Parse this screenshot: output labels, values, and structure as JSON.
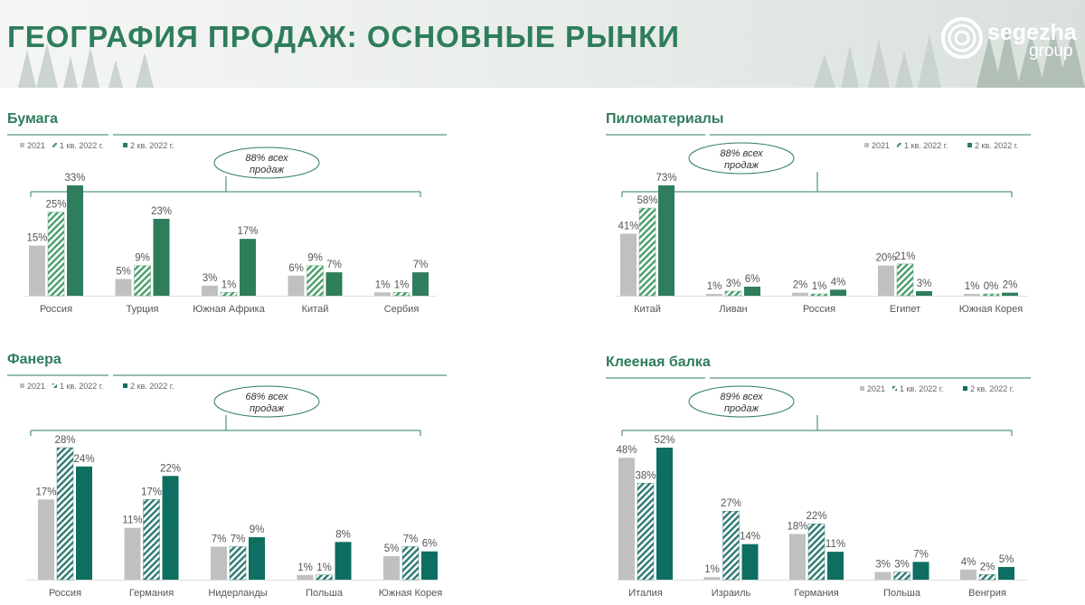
{
  "header": {
    "title": "ГЕОГРАФИЯ ПРОДАЖ: ОСНОВНЫЕ РЫНКИ",
    "logo_word1": "segezha",
    "logo_word2": "group"
  },
  "colors": {
    "s2021": "#c0c0c0",
    "q1_green": "#4a9e6b",
    "q2_green": "#2e7d5b",
    "q1_teal": "#2d7a72",
    "q2_teal": "#0e6e62",
    "accent": "#2e7d5b"
  },
  "chart_data": [
    {
      "type": "bar",
      "title": "Бумага",
      "callout": "88% всех продаж",
      "categories": [
        "Россия",
        "Турция",
        "Южная Африка",
        "Китай",
        "Сербия"
      ],
      "series": [
        {
          "name": "2021",
          "values": [
            15,
            5,
            3,
            6,
            1
          ],
          "labels": [
            "15%",
            "5%",
            "3%",
            "6%",
            "1%"
          ]
        },
        {
          "name": "1 кв. 2022 г.",
          "values": [
            25,
            9,
            1,
            9,
            1
          ],
          "labels": [
            "25%",
            "9%",
            "1%",
            "9%",
            "1%"
          ]
        },
        {
          "name": "2 кв. 2022 г.",
          "values": [
            33,
            23,
            17,
            7,
            7
          ],
          "labels": [
            "33%",
            "23%",
            "17%",
            "7%",
            "7%"
          ]
        }
      ]
    },
    {
      "type": "bar",
      "title": "Пиломатериалы",
      "callout": "88% всех продаж",
      "categories": [
        "Китай",
        "Ливан",
        "Россия",
        "Египет",
        "Южная Корея"
      ],
      "series": [
        {
          "name": "2021",
          "values": [
            41,
            1,
            2,
            20,
            1
          ],
          "labels": [
            "41%",
            "1%",
            "2%",
            "20%",
            "1%"
          ]
        },
        {
          "name": "1 кв. 2022 г.",
          "values": [
            58,
            3,
            1,
            21,
            0
          ],
          "labels": [
            "58%",
            "3%",
            "1%",
            "21%",
            "0%"
          ]
        },
        {
          "name": "2 кв. 2022 г.",
          "values": [
            73,
            6,
            4,
            3,
            2
          ],
          "labels": [
            "73%",
            "6%",
            "4%",
            "3%",
            "2%"
          ]
        }
      ]
    },
    {
      "type": "bar",
      "title": "Фанера",
      "callout": "68% всех продаж",
      "categories": [
        "Россия",
        "Германия",
        "Нидерланды",
        "Польша",
        "Южная Корея"
      ],
      "series": [
        {
          "name": "2021",
          "values": [
            17,
            11,
            7,
            1,
            5
          ],
          "labels": [
            "17%",
            "11%",
            "7%",
            "1%",
            "5%"
          ]
        },
        {
          "name": "1 кв. 2022 г.",
          "values": [
            28,
            17,
            7,
            1,
            7
          ],
          "labels": [
            "28%",
            "17%",
            "7%",
            "1%",
            "7%"
          ]
        },
        {
          "name": "2 кв. 2022 г.",
          "values": [
            24,
            22,
            9,
            8,
            6
          ],
          "labels": [
            "24%",
            "22%",
            "9%",
            "8%",
            "6%"
          ]
        }
      ]
    },
    {
      "type": "bar",
      "title": "Клееная балка",
      "callout": "89% всех продаж",
      "categories": [
        "Италия",
        "Израиль",
        "Германия",
        "Польша",
        "Венгрия"
      ],
      "series": [
        {
          "name": "2021",
          "values": [
            48,
            1,
            18,
            3,
            4
          ],
          "labels": [
            "48%",
            "1%",
            "18%",
            "3%",
            "4%"
          ]
        },
        {
          "name": "1 кв. 2022 г.",
          "values": [
            38,
            27,
            22,
            3,
            2
          ],
          "labels": [
            "38%",
            "27%",
            "22%",
            "3%",
            "2%"
          ]
        },
        {
          "name": "2 кв. 2022 г.",
          "values": [
            52,
            14,
            11,
            7,
            5
          ],
          "labels": [
            "52%",
            "14%",
            "11%",
            "7%",
            "5%"
          ]
        }
      ]
    }
  ]
}
